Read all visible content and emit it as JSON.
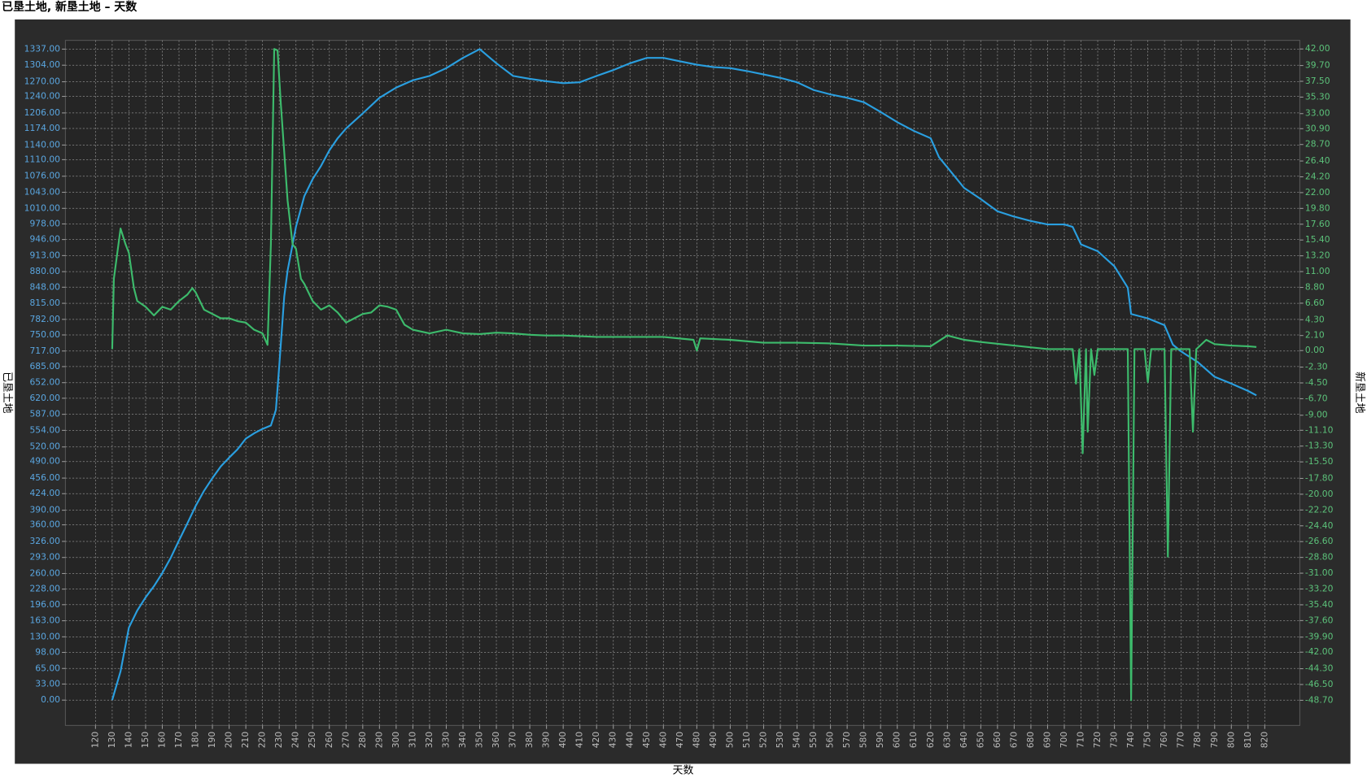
{
  "chart_data": {
    "type": "line",
    "title": "已垦土地, 新垦土地 – 天数",
    "xlabel": "天数",
    "ylabel": "已垦土地",
    "y2label": "新垦土地",
    "grid": true,
    "xlim": [
      102,
      841
    ],
    "ylim": [
      -52,
      1355
    ],
    "y2lim": [
      -52.2,
      43.2
    ],
    "xticks": [
      120,
      130,
      140,
      150,
      160,
      170,
      180,
      190,
      200,
      210,
      220,
      230,
      240,
      250,
      260,
      270,
      280,
      290,
      300,
      310,
      320,
      330,
      340,
      350,
      360,
      370,
      380,
      390,
      400,
      410,
      420,
      430,
      440,
      450,
      460,
      470,
      480,
      490,
      500,
      510,
      520,
      530,
      540,
      550,
      560,
      570,
      580,
      590,
      600,
      610,
      620,
      630,
      640,
      650,
      660,
      670,
      680,
      690,
      700,
      710,
      720,
      730,
      740,
      750,
      760,
      770,
      780,
      790,
      800,
      810,
      820
    ],
    "yticks": [
      {
        "value": 0,
        "label": "0.00"
      },
      {
        "value": 33,
        "label": "33.00"
      },
      {
        "value": 65,
        "label": "65.00"
      },
      {
        "value": 98,
        "label": "98.00"
      },
      {
        "value": 130,
        "label": "130.00"
      },
      {
        "value": 163,
        "label": "163.00"
      },
      {
        "value": 196,
        "label": "196.00"
      },
      {
        "value": 228,
        "label": "228.00"
      },
      {
        "value": 260,
        "label": "260.00"
      },
      {
        "value": 293,
        "label": "293.00"
      },
      {
        "value": 326,
        "label": "326.00"
      },
      {
        "value": 360,
        "label": "360.00"
      },
      {
        "value": 390,
        "label": "390.00"
      },
      {
        "value": 424,
        "label": "424.00"
      },
      {
        "value": 456,
        "label": "456.00"
      },
      {
        "value": 490,
        "label": "490.00"
      },
      {
        "value": 520,
        "label": "520.00"
      },
      {
        "value": 554,
        "label": "554.00"
      },
      {
        "value": 587,
        "label": "587.00"
      },
      {
        "value": 620,
        "label": "620.00"
      },
      {
        "value": 652,
        "label": "652.00"
      },
      {
        "value": 685,
        "label": "685.00"
      },
      {
        "value": 717,
        "label": "717.00"
      },
      {
        "value": 750,
        "label": "750.00"
      },
      {
        "value": 782,
        "label": "782.00"
      },
      {
        "value": 815,
        "label": "815.00"
      },
      {
        "value": 848,
        "label": "848.00"
      },
      {
        "value": 880,
        "label": "880.00"
      },
      {
        "value": 913,
        "label": "913.00"
      },
      {
        "value": 946,
        "label": "946.00"
      },
      {
        "value": 978,
        "label": "978.00"
      },
      {
        "value": 1010,
        "label": "1010.00"
      },
      {
        "value": 1043,
        "label": "1043.00"
      },
      {
        "value": 1076,
        "label": "1076.00"
      },
      {
        "value": 1110,
        "label": "1110.00"
      },
      {
        "value": 1140,
        "label": "1140.00"
      },
      {
        "value": 1174,
        "label": "1174.00"
      },
      {
        "value": 1206,
        "label": "1206.00"
      },
      {
        "value": 1240,
        "label": "1240.00"
      },
      {
        "value": 1270,
        "label": "1270.00"
      },
      {
        "value": 1304,
        "label": "1304.00"
      },
      {
        "value": 1337,
        "label": "1337.00"
      }
    ],
    "y2ticks": [
      {
        "value": 42,
        "label": "42.00"
      },
      {
        "value": 39.7,
        "label": "39.70"
      },
      {
        "value": 37.5,
        "label": "37.50"
      },
      {
        "value": 35.3,
        "label": "35.30"
      },
      {
        "value": 33,
        "label": "33.00"
      },
      {
        "value": 30.9,
        "label": "30.90"
      },
      {
        "value": 28.7,
        "label": "28.70"
      },
      {
        "value": 26.4,
        "label": "26.40"
      },
      {
        "value": 24.2,
        "label": "24.20"
      },
      {
        "value": 22,
        "label": "22.00"
      },
      {
        "value": 19.8,
        "label": "19.80"
      },
      {
        "value": 17.6,
        "label": "17.60"
      },
      {
        "value": 15.4,
        "label": "15.40"
      },
      {
        "value": 13.2,
        "label": "13.20"
      },
      {
        "value": 11,
        "label": "11.00"
      },
      {
        "value": 8.8,
        "label": "8.80"
      },
      {
        "value": 6.6,
        "label": "6.60"
      },
      {
        "value": 4.3,
        "label": "4.30"
      },
      {
        "value": 2.1,
        "label": "2.10"
      },
      {
        "value": 0,
        "label": "0.00"
      },
      {
        "value": -2.3,
        "label": "-2.30"
      },
      {
        "value": -4.5,
        "label": "-4.50"
      },
      {
        "value": -6.7,
        "label": "-6.70"
      },
      {
        "value": -9,
        "label": "-9.00"
      },
      {
        "value": -11.1,
        "label": "-11.10"
      },
      {
        "value": -13.3,
        "label": "-13.30"
      },
      {
        "value": -15.5,
        "label": "-15.50"
      },
      {
        "value": -17.8,
        "label": "-17.80"
      },
      {
        "value": -20,
        "label": "-20.00"
      },
      {
        "value": -22.2,
        "label": "-22.20"
      },
      {
        "value": -24.4,
        "label": "-24.40"
      },
      {
        "value": -26.6,
        "label": "-26.60"
      },
      {
        "value": -28.8,
        "label": "-28.80"
      },
      {
        "value": -31,
        "label": "-31.00"
      },
      {
        "value": -33.2,
        "label": "-33.20"
      },
      {
        "value": -35.4,
        "label": "-35.40"
      },
      {
        "value": -37.6,
        "label": "-37.60"
      },
      {
        "value": -39.9,
        "label": "-39.90"
      },
      {
        "value": -42,
        "label": "-42.00"
      },
      {
        "value": -44.3,
        "label": "-44.30"
      },
      {
        "value": -46.5,
        "label": "-46.50"
      },
      {
        "value": -48.7,
        "label": "-48.70"
      }
    ],
    "series": [
      {
        "color": "#2a9fe0",
        "axis": "y",
        "x": [
          130,
          135,
          140,
          145,
          150,
          155,
          160,
          165,
          170,
          175,
          180,
          185,
          190,
          195,
          200,
          205,
          210,
          215,
          220,
          225,
          228,
          230,
          233,
          235,
          240,
          245,
          250,
          255,
          260,
          265,
          270,
          280,
          290,
          300,
          310,
          320,
          330,
          340,
          350,
          360,
          370,
          380,
          390,
          400,
          410,
          420,
          430,
          440,
          450,
          460,
          470,
          480,
          490,
          500,
          510,
          520,
          530,
          540,
          550,
          560,
          570,
          580,
          590,
          600,
          610,
          620,
          625,
          630,
          640,
          650,
          660,
          670,
          680,
          690,
          700,
          705,
          710,
          720,
          730,
          738,
          740,
          750,
          760,
          765,
          770,
          780,
          790,
          800,
          810,
          815
        ],
        "values": [
          0,
          59,
          149,
          184,
          211,
          234,
          261,
          292,
          328,
          363,
          399,
          430,
          456,
          480,
          498,
          515,
          537,
          548,
          557,
          564,
          596,
          686,
          829,
          882,
          972,
          1035,
          1070,
          1097,
          1129,
          1154,
          1174,
          1205,
          1237,
          1258,
          1273,
          1282,
          1298,
          1319,
          1337,
          1308,
          1282,
          1276,
          1271,
          1267,
          1269,
          1282,
          1294,
          1308,
          1319,
          1319,
          1312,
          1305,
          1300,
          1298,
          1292,
          1285,
          1278,
          1269,
          1253,
          1244,
          1237,
          1228,
          1208,
          1187,
          1169,
          1154,
          1115,
          1094,
          1052,
          1029,
          1004,
          993,
          984,
          977,
          977,
          972,
          936,
          922,
          891,
          847,
          793,
          784,
          770,
          730,
          716,
          694,
          664,
          650,
          635,
          626
        ]
      },
      {
        "color": "#3dbb6c",
        "axis": "y2",
        "x": [
          130,
          131,
          135,
          138,
          140,
          143,
          145,
          150,
          155,
          160,
          165,
          170,
          175,
          178,
          180,
          185,
          190,
          195,
          200,
          205,
          210,
          215,
          220,
          223,
          225,
          227,
          229,
          231,
          233,
          235,
          238,
          240,
          243,
          245,
          250,
          255,
          260,
          265,
          270,
          275,
          280,
          285,
          290,
          295,
          300,
          305,
          310,
          320,
          330,
          340,
          350,
          360,
          370,
          380,
          390,
          400,
          420,
          440,
          460,
          478,
          480,
          482,
          500,
          520,
          540,
          560,
          580,
          600,
          620,
          630,
          640,
          650,
          670,
          690,
          705,
          707,
          709,
          711,
          713,
          714,
          716,
          718,
          720,
          738,
          740,
          742,
          748,
          750,
          752,
          760,
          762,
          764,
          775,
          777,
          779,
          785,
          790,
          800,
          810,
          815
        ],
        "values": [
          0.2,
          10,
          17,
          14.8,
          13.6,
          8.7,
          6.9,
          6.1,
          4.9,
          6.1,
          5.7,
          6.9,
          7.8,
          8.7,
          8.1,
          5.7,
          5.1,
          4.5,
          4.5,
          4.1,
          3.9,
          2.9,
          2.4,
          0.8,
          14.8,
          42,
          41.8,
          34.2,
          27.6,
          20.9,
          14.8,
          14.2,
          10,
          9.3,
          6.9,
          5.7,
          6.3,
          5.3,
          3.9,
          4.5,
          5.1,
          5.3,
          6.3,
          6.1,
          5.7,
          3.6,
          2.9,
          2.4,
          2.9,
          2.4,
          2.3,
          2.5,
          2.4,
          2.2,
          2.1,
          2.1,
          1.9,
          1.9,
          1.9,
          1.5,
          0,
          1.7,
          1.5,
          1.1,
          1.1,
          1,
          0.7,
          0.7,
          0.6,
          2.1,
          1.5,
          1.2,
          0.7,
          0.2,
          0.2,
          -4.6,
          0.2,
          -14.3,
          0.2,
          -11.3,
          0.2,
          -3.4,
          0.2,
          0.2,
          -48.7,
          0.2,
          0.2,
          -4.4,
          0.2,
          0.2,
          -28.7,
          0.2,
          0.2,
          -11.3,
          0.2,
          1.5,
          0.9,
          0.7,
          0.6,
          0.5
        ]
      }
    ]
  }
}
